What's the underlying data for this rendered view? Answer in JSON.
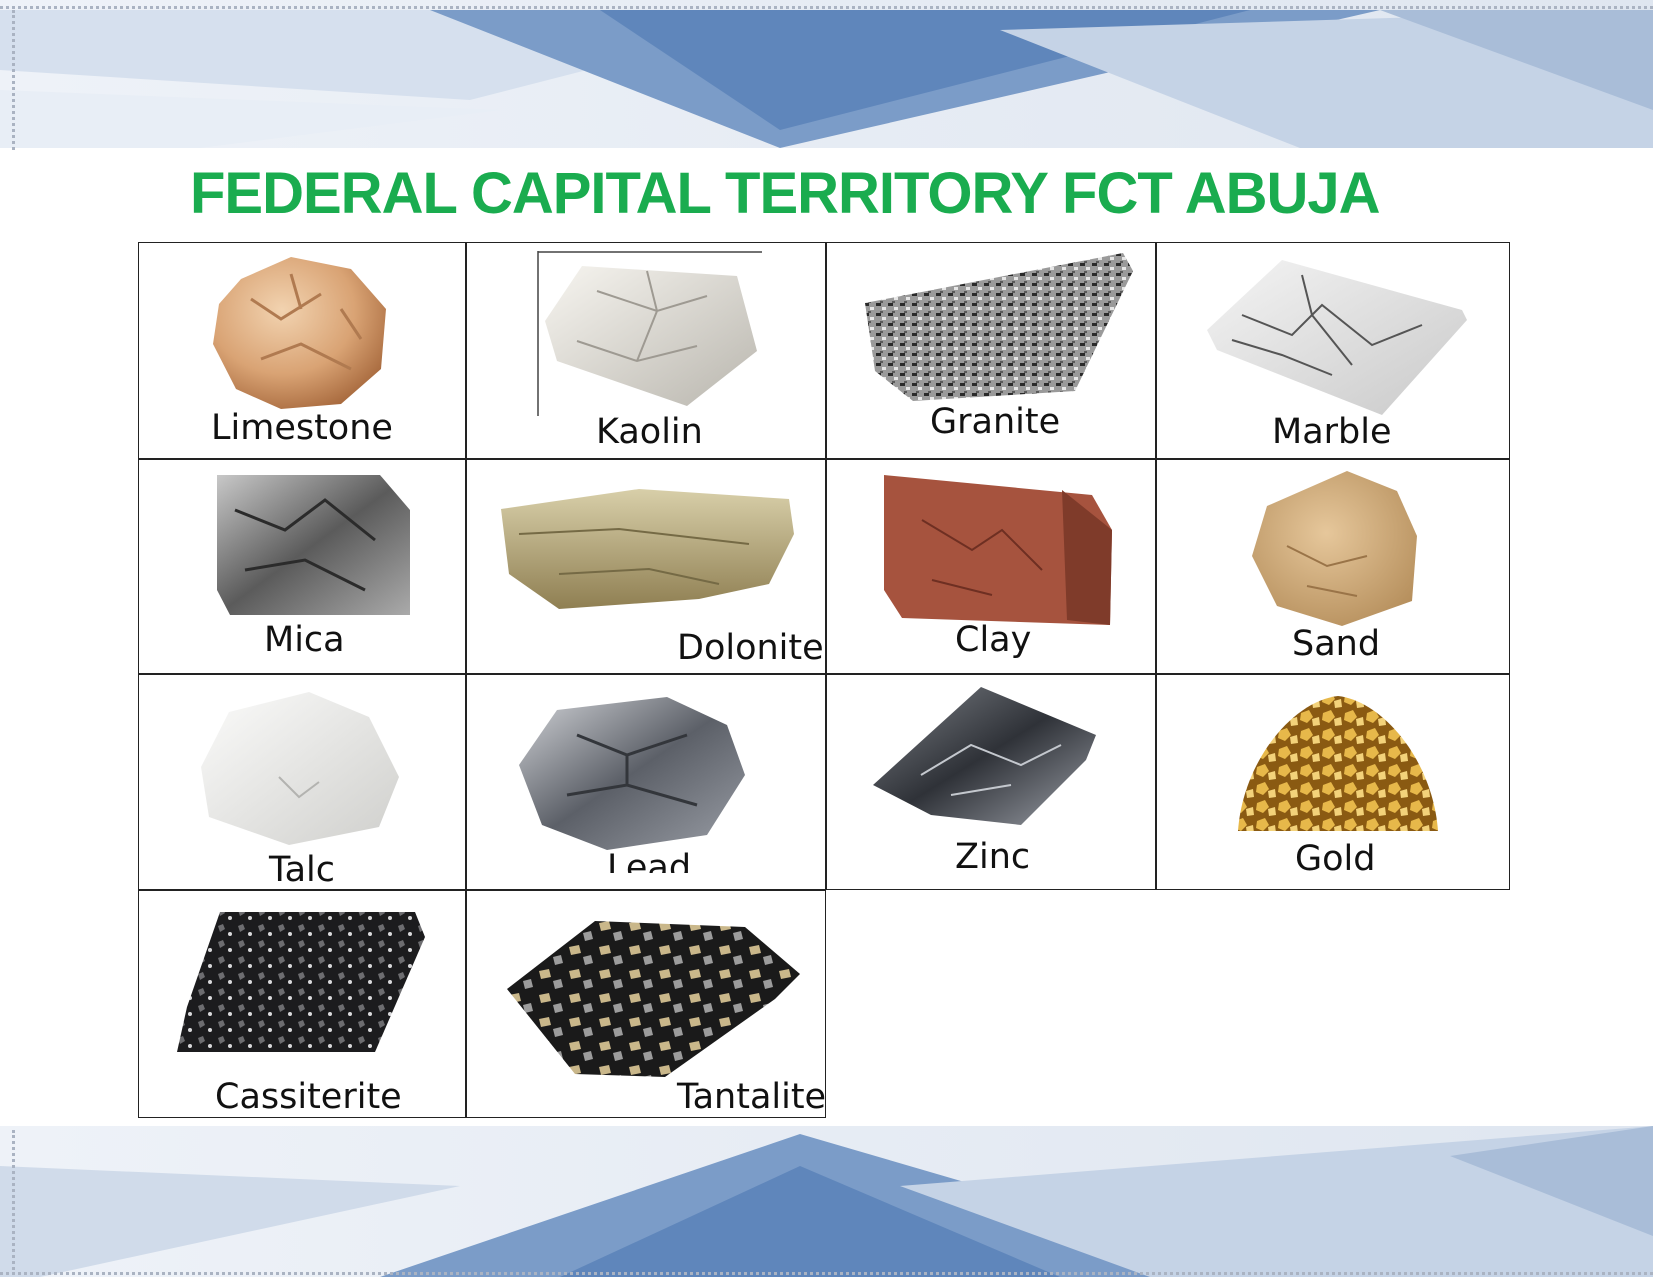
{
  "page": {
    "title": "FEDERAL CAPITAL TERRITORY FCT ABUJA",
    "title_color": "#1aac4f"
  },
  "minerals": [
    {
      "label": "Limestone",
      "icon": "limestone-rock-icon"
    },
    {
      "label": "Kaolin",
      "icon": "kaolin-rock-icon"
    },
    {
      "label": "Granite",
      "icon": "granite-rock-icon"
    },
    {
      "label": "Marble",
      "icon": "marble-rock-icon"
    },
    {
      "label": "Mica",
      "icon": "mica-rock-icon"
    },
    {
      "label": "Dolonite",
      "icon": "dolomite-rock-icon"
    },
    {
      "label": "Clay",
      "icon": "clay-brick-icon"
    },
    {
      "label": "Sand",
      "icon": "sand-sample-icon"
    },
    {
      "label": "Talc",
      "icon": "talc-rock-icon"
    },
    {
      "label": "Lead",
      "icon": "lead-ore-icon"
    },
    {
      "label": "Zinc",
      "icon": "zinc-ore-icon"
    },
    {
      "label": "Gold",
      "icon": "gold-nuggets-icon"
    },
    {
      "label": "Cassiterite",
      "icon": "cassiterite-rock-icon"
    },
    {
      "label": "Tantalite",
      "icon": "tantalite-rock-icon"
    }
  ]
}
